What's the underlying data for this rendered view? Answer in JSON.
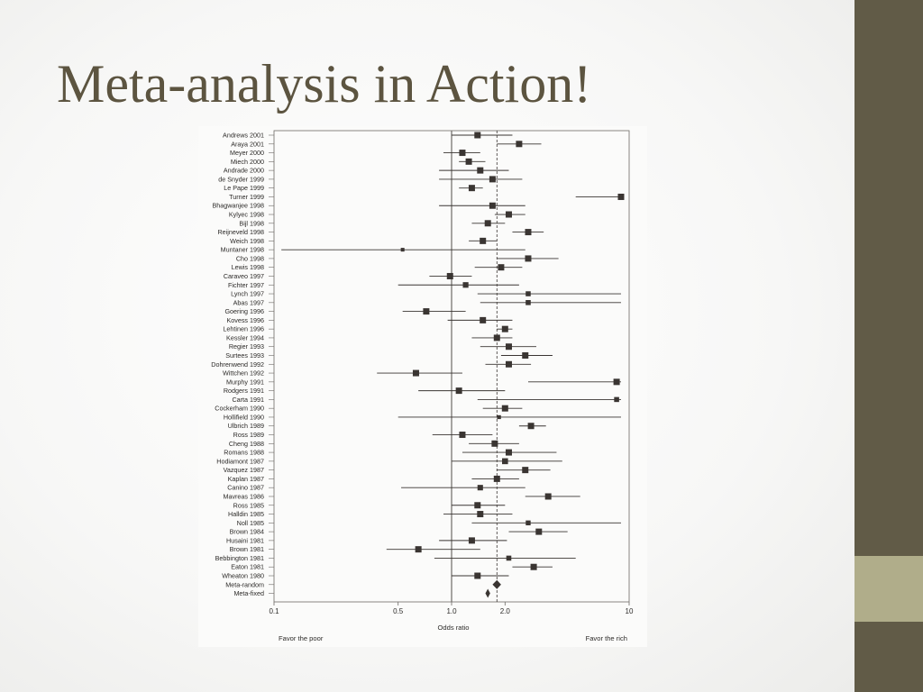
{
  "slide": {
    "title": "Meta-analysis in Action!"
  },
  "colors": {
    "title": "#5c5440",
    "side_bar": "#615b47",
    "side_accent": "#b0ad8a",
    "marker": "#3a3532"
  },
  "chart_data": {
    "type": "forest",
    "xscale": "log",
    "xlim": [
      0.1,
      10
    ],
    "xticks": [
      0.1,
      0.5,
      1.0,
      2.0,
      10
    ],
    "xtick_labels": [
      "0.1",
      "0.5",
      "1.0",
      "2.0",
      "10"
    ],
    "xlabel": "Odds ratio",
    "footer_left": "Favor the poor",
    "footer_right": "Favor the rich",
    "reference_line": 1.0,
    "pooled_reference_line": 1.8,
    "studies": [
      {
        "label": "Andrews 2001",
        "or": 1.4,
        "lo": 1.0,
        "hi": 2.2
      },
      {
        "label": "Araya 2001",
        "or": 2.4,
        "lo": 1.8,
        "hi": 3.2
      },
      {
        "label": "Meyer 2000",
        "or": 1.15,
        "lo": 0.9,
        "hi": 1.45
      },
      {
        "label": "Miech 2000",
        "or": 1.25,
        "lo": 1.1,
        "hi": 1.55
      },
      {
        "label": "Andrade 2000",
        "or": 1.45,
        "lo": 0.85,
        "hi": 2.1
      },
      {
        "label": "de Snyder 1999",
        "or": 1.7,
        "lo": 0.85,
        "hi": 2.5
      },
      {
        "label": "Le Pape 1999",
        "or": 1.3,
        "lo": 1.1,
        "hi": 1.5
      },
      {
        "label": "Turner 1999",
        "or": 9.0,
        "lo": 5.0,
        "hi": 9.0
      },
      {
        "label": "Bhagwanjee 1998",
        "or": 1.7,
        "lo": 0.85,
        "hi": 2.6
      },
      {
        "label": "Kylyec 1998",
        "or": 2.1,
        "lo": 1.75,
        "hi": 2.6
      },
      {
        "label": "Bijl 1998",
        "or": 1.6,
        "lo": 1.3,
        "hi": 2.0
      },
      {
        "label": "Reijneveld 1998",
        "or": 2.7,
        "lo": 2.2,
        "hi": 3.3
      },
      {
        "label": "Weich 1998",
        "or": 1.5,
        "lo": 1.25,
        "hi": 1.8
      },
      {
        "label": "Muntaner 1998",
        "or": 0.53,
        "lo": 0.11,
        "hi": 2.6
      },
      {
        "label": "Cho 1998",
        "or": 2.7,
        "lo": 1.8,
        "hi": 4.0
      },
      {
        "label": "Lewis 1998",
        "or": 1.9,
        "lo": 1.35,
        "hi": 2.5
      },
      {
        "label": "Caraveo 1997",
        "or": 0.98,
        "lo": 0.75,
        "hi": 1.3
      },
      {
        "label": "Fichter 1997",
        "or": 1.2,
        "lo": 0.5,
        "hi": 2.4
      },
      {
        "label": "Lynch 1997",
        "or": 2.7,
        "lo": 1.4,
        "hi": 9.0
      },
      {
        "label": "Abas 1997",
        "or": 2.7,
        "lo": 1.45,
        "hi": 9.0
      },
      {
        "label": "Goering 1996",
        "or": 0.72,
        "lo": 0.53,
        "hi": 1.2
      },
      {
        "label": "Kovess 1996",
        "or": 1.5,
        "lo": 0.95,
        "hi": 2.2
      },
      {
        "label": "Lehtinen 1996",
        "or": 2.0,
        "lo": 1.8,
        "hi": 2.2
      },
      {
        "label": "Kessler 1994",
        "or": 1.8,
        "lo": 1.3,
        "hi": 2.2
      },
      {
        "label": "Regier 1993",
        "or": 2.1,
        "lo": 1.45,
        "hi": 3.0
      },
      {
        "label": "Surtees 1993",
        "or": 2.6,
        "lo": 1.9,
        "hi": 3.7
      },
      {
        "label": "Dohrenwend 1992",
        "or": 2.1,
        "lo": 1.55,
        "hi": 2.8
      },
      {
        "label": "Wittchen 1992",
        "or": 0.63,
        "lo": 0.38,
        "hi": 1.15
      },
      {
        "label": "Murphy 1991",
        "or": 8.5,
        "lo": 2.7,
        "hi": 9.0
      },
      {
        "label": "Rodgers 1991",
        "or": 1.1,
        "lo": 0.65,
        "hi": 2.0
      },
      {
        "label": "Carta 1991",
        "or": 8.5,
        "lo": 1.4,
        "hi": 9.0
      },
      {
        "label": "Cockerham 1990",
        "or": 2.0,
        "lo": 1.5,
        "hi": 2.5
      },
      {
        "label": "Hollifield 1990",
        "or": 1.85,
        "lo": 0.5,
        "hi": 9.0
      },
      {
        "label": "Ulbrich 1989",
        "or": 2.8,
        "lo": 2.4,
        "hi": 3.4
      },
      {
        "label": "Ross 1989",
        "or": 1.15,
        "lo": 0.78,
        "hi": 1.7
      },
      {
        "label": "Cheng 1988",
        "or": 1.75,
        "lo": 1.25,
        "hi": 2.4
      },
      {
        "label": "Romans 1988",
        "or": 2.1,
        "lo": 1.15,
        "hi": 3.9
      },
      {
        "label": "Hodiamont 1987",
        "or": 2.0,
        "lo": 1.0,
        "hi": 4.2
      },
      {
        "label": "Vazquez 1987",
        "or": 2.6,
        "lo": 1.8,
        "hi": 3.6
      },
      {
        "label": "Kaplan 1987",
        "or": 1.8,
        "lo": 1.3,
        "hi": 2.4
      },
      {
        "label": "Canino 1987",
        "or": 1.45,
        "lo": 0.52,
        "hi": 2.6
      },
      {
        "label": "Mavreas 1986",
        "or": 3.5,
        "lo": 2.6,
        "hi": 5.3
      },
      {
        "label": "Ross 1985",
        "or": 1.4,
        "lo": 1.0,
        "hi": 2.0
      },
      {
        "label": "Halldin 1985",
        "or": 1.45,
        "lo": 0.9,
        "hi": 2.2
      },
      {
        "label": "Noll 1985",
        "or": 2.7,
        "lo": 1.3,
        "hi": 9.0
      },
      {
        "label": "Brown 1984",
        "or": 3.1,
        "lo": 2.1,
        "hi": 4.5
      },
      {
        "label": "Husaini 1981",
        "or": 1.3,
        "lo": 0.85,
        "hi": 2.05
      },
      {
        "label": "Brown 1981",
        "or": 0.65,
        "lo": 0.43,
        "hi": 1.45
      },
      {
        "label": "Bebbington 1981",
        "or": 2.1,
        "lo": 0.8,
        "hi": 5.0
      },
      {
        "label": "Eaton 1981",
        "or": 2.9,
        "lo": 2.2,
        "hi": 3.7
      },
      {
        "label": "Wheaton 1980",
        "or": 1.4,
        "lo": 1.0,
        "hi": 2.1
      }
    ],
    "pooled": [
      {
        "label": "Meta-random",
        "or": 1.8,
        "lo": 1.7,
        "hi": 1.9
      },
      {
        "label": "Meta-fixed",
        "or": 1.6,
        "lo": 1.55,
        "hi": 1.65
      }
    ]
  }
}
